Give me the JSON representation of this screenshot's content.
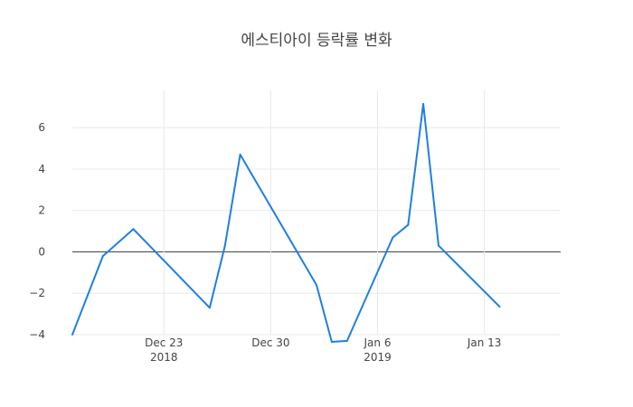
{
  "chart_data": {
    "type": "line",
    "title": "에스티아이 등락률 변화",
    "xlabel": "",
    "ylabel": "",
    "grid": true,
    "x": [
      "2018-12-17",
      "2018-12-19",
      "2018-12-21",
      "2018-12-26",
      "2018-12-27",
      "2018-12-28",
      "2019-01-02",
      "2019-01-03",
      "2019-01-04",
      "2019-01-07",
      "2019-01-08",
      "2019-01-09",
      "2019-01-10",
      "2019-01-14"
    ],
    "values": [
      -4.0,
      -0.2,
      1.1,
      -2.7,
      0.3,
      4.7,
      -1.6,
      -4.35,
      -4.3,
      0.7,
      1.3,
      7.15,
      0.3,
      -2.65
    ],
    "ylim": [
      -4.0,
      7.8
    ],
    "xlim": [
      "2018-12-17",
      "2019-01-18"
    ],
    "y_ticks": [
      "−4",
      "−2",
      "0",
      "2",
      "4",
      "6"
    ],
    "x_ticks": [
      {
        "date": "2018-12-23",
        "label": "Dec 23",
        "sub": "2018"
      },
      {
        "date": "2018-12-30",
        "label": "Dec 30",
        "sub": ""
      },
      {
        "date": "2019-01-06",
        "label": "Jan 6",
        "sub": "2019"
      },
      {
        "date": "2019-01-13",
        "label": "Jan 13",
        "sub": ""
      }
    ],
    "colors": {
      "line": "#1f7fe0",
      "grid": "#e8e8e8",
      "zero": "#444444"
    }
  }
}
